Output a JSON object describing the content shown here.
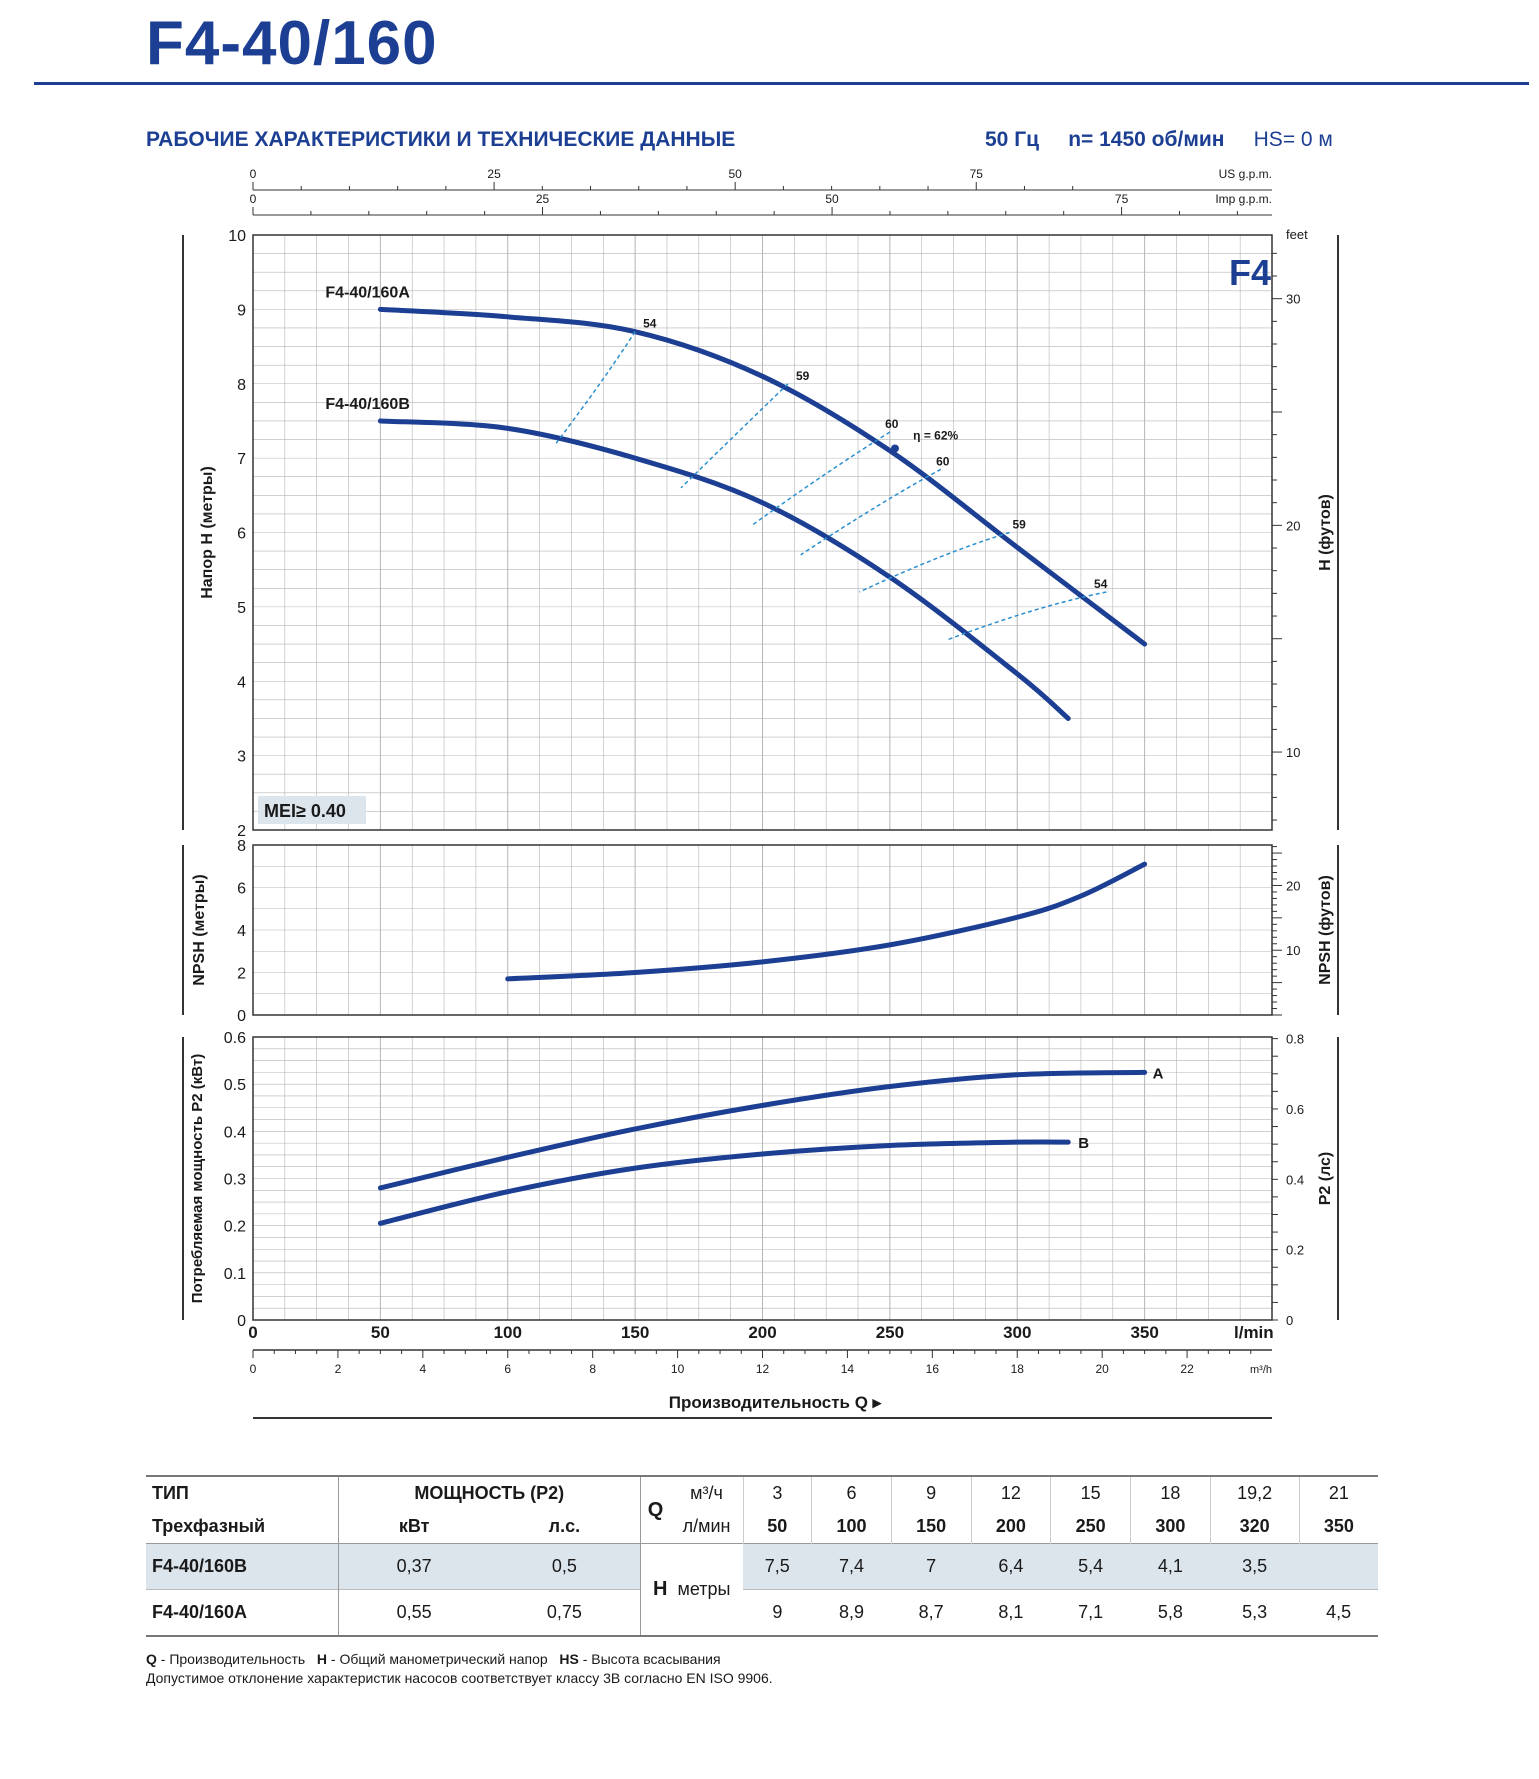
{
  "header": {
    "model": "F4-40/160",
    "subtitle": "РАБОЧИЕ ХАРАКТЕРИСТИКИ И ТЕХНИЧЕСКИЕ ДАННЫЕ",
    "freq": "50 Гц",
    "speed": "n= 1450 об/мин",
    "hs": "HS= 0 м"
  },
  "colors": {
    "brand": "#1c3f93",
    "curve": "#1c3f93",
    "efficiency": "#2a8fd0",
    "grid": "#b5b5b5",
    "shade": "#dde5ec"
  },
  "chart_data": [
    {
      "type": "line",
      "name": "head",
      "badge": "F4",
      "mei": "MEI≥ 0.40",
      "ylabel": "Напор H (метры)",
      "ylabel_right": "H (футов)",
      "right_unit": "feet",
      "ylim": [
        2,
        10
      ],
      "yticks": [
        2,
        3,
        4,
        5,
        6,
        7,
        8,
        9,
        10
      ],
      "right_ticks": [
        10,
        20,
        30
      ],
      "xlim": [
        0,
        400
      ],
      "series": [
        {
          "name": "F4-40/160A",
          "x": [
            50,
            100,
            150,
            200,
            250,
            300,
            350
          ],
          "y": [
            9,
            8.9,
            8.7,
            8.1,
            7.1,
            5.8,
            4.5
          ]
        },
        {
          "name": "F4-40/160B",
          "x": [
            50,
            100,
            150,
            200,
            250,
            300,
            320
          ],
          "y": [
            7.5,
            7.4,
            7,
            6.4,
            5.4,
            4.1,
            3.5
          ]
        }
      ],
      "efficiency_labels": [
        {
          "text": "54",
          "x": 150,
          "y": 8.7
        },
        {
          "text": "59",
          "x": 210,
          "y": 8.0
        },
        {
          "text": "60",
          "x": 245,
          "y": 7.35
        },
        {
          "text": "η = 62%",
          "x": 256,
          "y": 7.2
        },
        {
          "text": "60",
          "x": 265,
          "y": 6.85
        },
        {
          "text": "59",
          "x": 295,
          "y": 6.0
        },
        {
          "text": "54",
          "x": 327,
          "y": 5.2
        }
      ],
      "top_axes": [
        {
          "unit": "US g.p.m.",
          "ticks": [
            0,
            25,
            50,
            75
          ]
        },
        {
          "unit": "Imp g.p.m.",
          "ticks": [
            0,
            25,
            50,
            75
          ]
        }
      ]
    },
    {
      "type": "line",
      "name": "npsh",
      "ylabel": "NPSH (метры)",
      "ylabel_right": "NPSH (футов)",
      "ylim": [
        0,
        8
      ],
      "yticks": [
        0,
        2,
        4,
        6,
        8
      ],
      "right_ticks": [
        10,
        20
      ],
      "series": [
        {
          "name": "NPSH",
          "x": [
            100,
            150,
            200,
            250,
            300,
            325,
            350
          ],
          "y": [
            1.7,
            2.0,
            2.5,
            3.3,
            4.6,
            5.6,
            7.1
          ]
        }
      ]
    },
    {
      "type": "line",
      "name": "power",
      "ylabel": "Потребляемая мощность P2 (кВт)",
      "ylabel_right": "P2 (лс)",
      "ylim": [
        0,
        0.6
      ],
      "yticks": [
        "0",
        "0.1",
        "0.2",
        "0.3",
        "0.4",
        "0.5",
        "0.6"
      ],
      "right_ticks": [
        "0",
        "0.2",
        "0.4",
        "0.6",
        "0.8"
      ],
      "xlabel": "Производительность Q",
      "xticks_lmin": [
        "0",
        "50",
        "100",
        "150",
        "200",
        "250",
        "300",
        "350"
      ],
      "xunit_lmin": "l/min",
      "xticks_m3h": [
        "0",
        "2",
        "4",
        "6",
        "8",
        "10",
        "12",
        "14",
        "16",
        "18",
        "20",
        "22"
      ],
      "xunit_m3h": "m³/h",
      "series": [
        {
          "name": "A",
          "x": [
            50,
            100,
            150,
            200,
            250,
            300,
            350
          ],
          "y": [
            0.28,
            0.345,
            0.405,
            0.455,
            0.495,
            0.52,
            0.525
          ]
        },
        {
          "name": "B",
          "x": [
            50,
            100,
            150,
            200,
            250,
            300,
            320
          ],
          "y": [
            0.205,
            0.272,
            0.322,
            0.352,
            0.37,
            0.377,
            0.377
          ]
        }
      ]
    }
  ],
  "table": {
    "col_type": "ТИП",
    "col_power": "МОЩНОСТЬ (P2)",
    "phase": "Трехфазный",
    "kw": "кВт",
    "hp": "л.с.",
    "q": "Q",
    "m3h_unit": "м³/ч",
    "lmin_unit": "л/мин",
    "m3h": [
      "3",
      "6",
      "9",
      "12",
      "15",
      "18",
      "19,2",
      "21"
    ],
    "lmin": [
      "50",
      "100",
      "150",
      "200",
      "250",
      "300",
      "320",
      "350"
    ],
    "h": "H",
    "h_unit": "метры",
    "rows": [
      {
        "model": "F4-40/160B",
        "kw": "0,37",
        "hp": "0,5",
        "h": [
          "7,5",
          "7,4",
          "7",
          "6,4",
          "5,4",
          "4,1",
          "3,5",
          ""
        ]
      },
      {
        "model": "F4-40/160A",
        "kw": "0,55",
        "hp": "0,75",
        "h": [
          "9",
          "8,9",
          "8,7",
          "8,1",
          "7,1",
          "5,8",
          "5,3",
          "4,5"
        ]
      }
    ]
  },
  "notes": {
    "q": "Q",
    "q_text": " - Производительность",
    "h": "H",
    "h_text": " - Общий манометрический напор",
    "hs": "HS",
    "hs_text": " - Высота всасывания",
    "line2": "Допустимое отклонение характеристик насосов соответствует классу 3B согласно EN ISO 9906."
  }
}
